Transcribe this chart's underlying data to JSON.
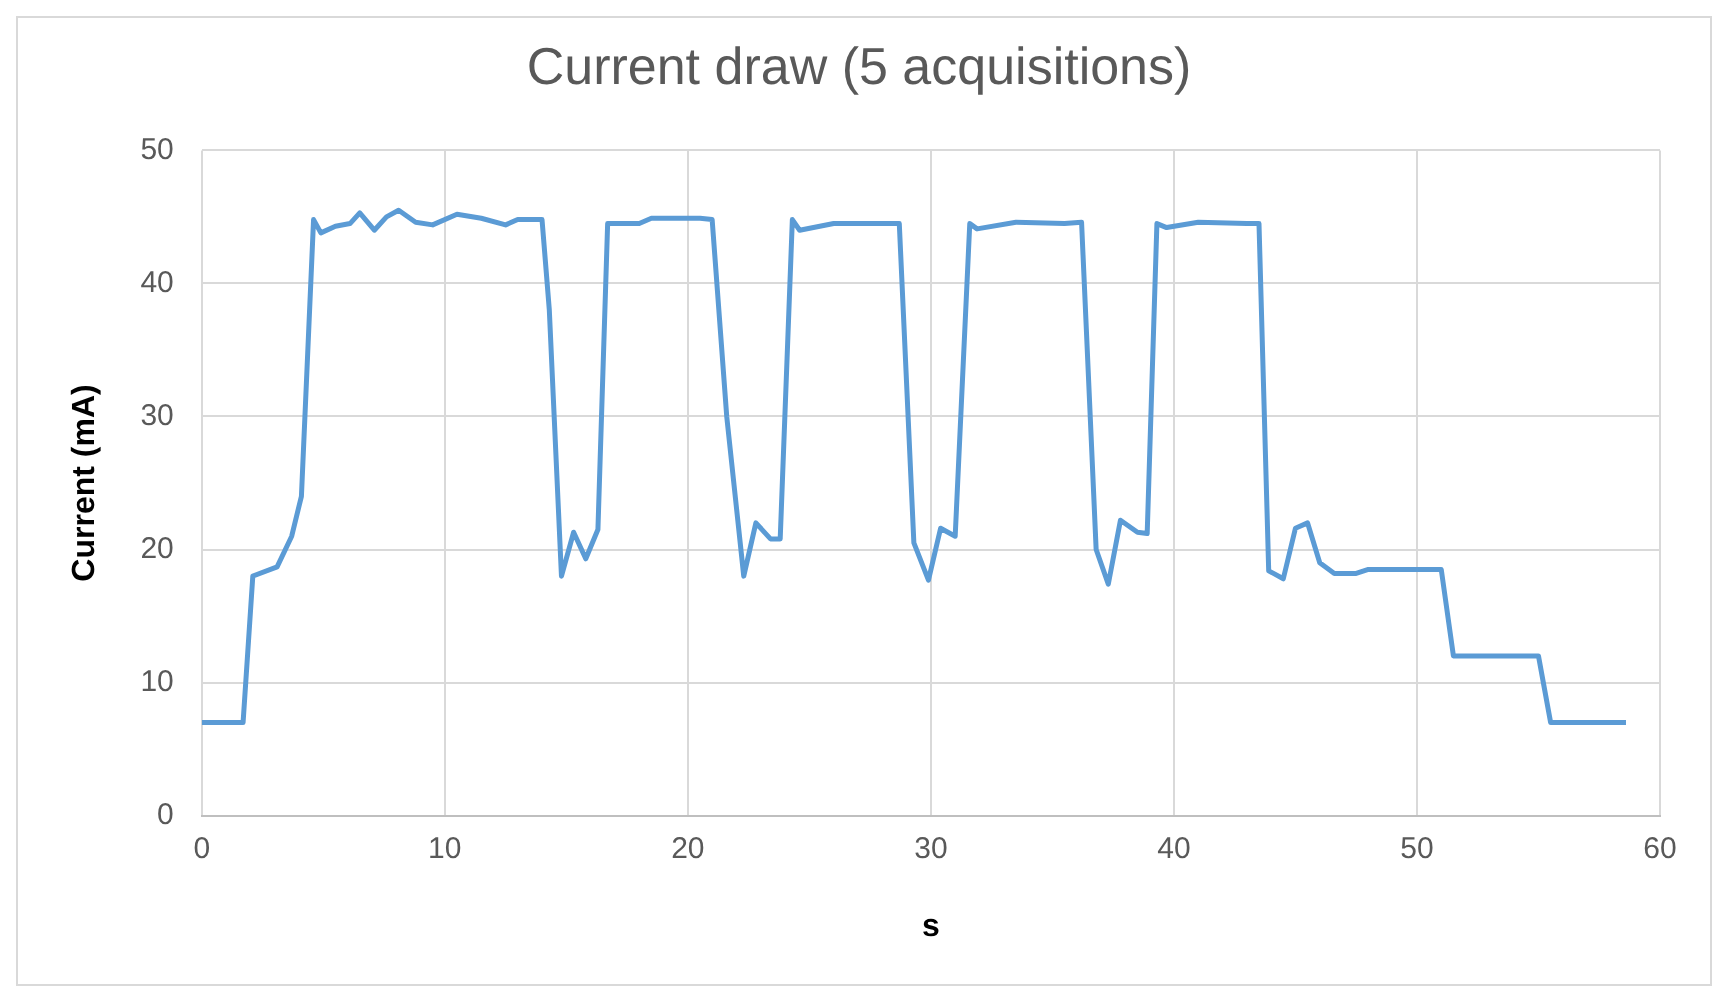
{
  "chart_data": {
    "type": "line",
    "title": "Current draw (5 acquisitions)",
    "xlabel": "s",
    "ylabel": "Current (mA)",
    "xlim": [
      0,
      60
    ],
    "xticks": [
      0,
      10,
      20,
      30,
      40,
      50,
      60
    ],
    "ylim": [
      0,
      50
    ],
    "yticks": [
      0,
      10,
      20,
      30,
      40,
      50
    ],
    "grid": true,
    "marker": "none",
    "line_style": "solid",
    "series": [
      {
        "color": "#5b9bd5",
        "x": [
          0,
          1.7,
          2.1,
          3.1,
          3.7,
          4.1,
          4.6,
          4.9,
          5.5,
          6.1,
          6.5,
          7.1,
          7.6,
          8.1,
          8.8,
          9.5,
          10.5,
          11.5,
          12.5,
          13,
          14,
          14.3,
          14.8,
          15.3,
          15.8,
          16.3,
          16.7,
          18,
          18.5,
          20.5,
          21,
          21.6,
          22.3,
          22.8,
          23.4,
          23.8,
          24.3,
          24.6,
          26,
          28,
          28.7,
          29.3,
          29.9,
          30.4,
          31,
          31.6,
          31.9,
          33.5,
          35.5,
          36.2,
          36.8,
          37.3,
          37.8,
          38.5,
          38.9,
          39.3,
          39.7,
          41,
          43,
          43.5,
          43.9,
          44.5,
          45,
          45.5,
          46,
          46.6,
          47.5,
          48,
          51,
          51.5,
          55,
          55.5,
          58.6
        ],
        "values": [
          7,
          7,
          18,
          18.7,
          21,
          24,
          44.8,
          43.8,
          44.3,
          44.5,
          45.3,
          44,
          45,
          45.5,
          44.6,
          44.4,
          45.2,
          44.9,
          44.4,
          44.8,
          44.8,
          38,
          18,
          21.3,
          19.3,
          21.5,
          44.5,
          44.5,
          44.9,
          44.9,
          44.8,
          30,
          18,
          22,
          20.8,
          20.8,
          44.8,
          44,
          44.5,
          44.5,
          44.5,
          20.5,
          17.7,
          21.6,
          21,
          44.5,
          44.1,
          44.6,
          44.5,
          44.6,
          20,
          17.4,
          22.2,
          21.3,
          21.2,
          44.5,
          44.2,
          44.6,
          44.5,
          44.5,
          18.4,
          17.8,
          21.6,
          22,
          19,
          18.2,
          18.2,
          18.5,
          18.5,
          12,
          12,
          7,
          7
        ]
      }
    ]
  }
}
